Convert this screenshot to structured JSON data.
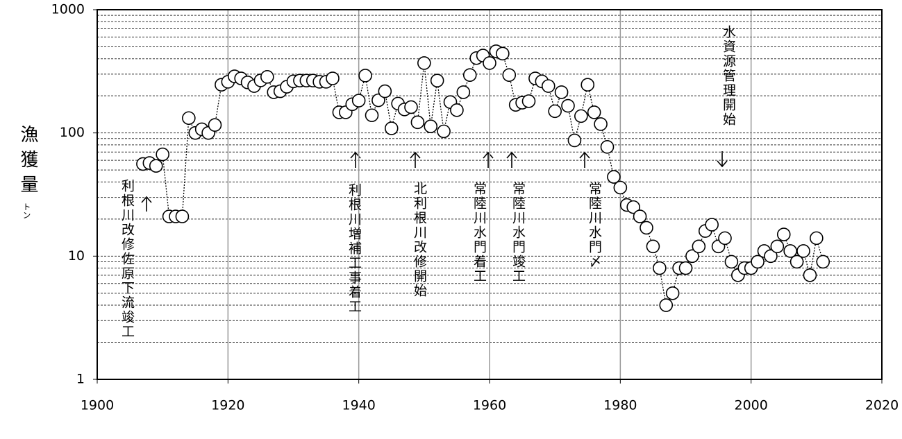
{
  "chart_data": {
    "type": "line",
    "y_label": "漁獲量",
    "y_unit": "トン",
    "x": [
      1907,
      1908,
      1909,
      1910,
      1911,
      1912,
      1913,
      1914,
      1915,
      1916,
      1917,
      1918,
      1919,
      1920,
      1921,
      1922,
      1923,
      1924,
      1925,
      1926,
      1927,
      1928,
      1929,
      1930,
      1931,
      1932,
      1933,
      1934,
      1935,
      1936,
      1937,
      1938,
      1939,
      1940,
      1941,
      1942,
      1943,
      1944,
      1945,
      1946,
      1947,
      1948,
      1949,
      1950,
      1951,
      1952,
      1953,
      1954,
      1955,
      1956,
      1957,
      1958,
      1959,
      1960,
      1961,
      1962,
      1963,
      1964,
      1965,
      1966,
      1967,
      1968,
      1969,
      1970,
      1971,
      1972,
      1973,
      1974,
      1975,
      1976,
      1977,
      1978,
      1979,
      1980,
      1981,
      1982,
      1983,
      1984,
      1985,
      1986,
      1987,
      1988,
      1989,
      1990,
      1991,
      1992,
      1993,
      1994,
      1995,
      1996,
      1997,
      1998,
      1999,
      2000,
      2001,
      2002,
      2003,
      2004,
      2005,
      2006,
      2007,
      2008,
      2009,
      2010,
      2011
    ],
    "values": [
      56,
      57,
      54,
      67,
      21,
      21,
      21,
      132,
      100,
      107,
      100,
      116,
      246,
      260,
      288,
      277,
      257,
      240,
      267,
      285,
      214,
      218,
      237,
      262,
      266,
      266,
      266,
      260,
      260,
      277,
      147,
      147,
      171,
      183,
      292,
      139,
      184,
      218,
      109,
      173,
      155,
      162,
      122,
      369,
      113,
      266,
      103,
      178,
      153,
      214,
      295,
      405,
      425,
      369,
      460,
      440,
      295,
      169,
      176,
      181,
      277,
      262,
      240,
      150,
      214,
      166,
      87,
      137,
      246,
      147,
      118,
      77,
      44,
      36,
      26,
      25,
      21,
      17,
      12,
      8,
      4,
      5,
      8,
      8,
      10,
      12,
      16,
      18,
      12,
      14,
      9,
      7,
      8,
      8,
      9,
      11,
      10,
      12,
      15,
      11,
      9,
      11,
      7,
      14,
      9
    ],
    "color": "#000000",
    "xlim": [
      1900,
      2020
    ],
    "xticks": [
      1900,
      1920,
      1940,
      1960,
      1980,
      2000,
      2020
    ],
    "ylim": [
      1,
      1000
    ],
    "yticks": [
      1,
      10,
      100,
      1000
    ],
    "log_y": true,
    "grid": true,
    "annotations": [
      "利根川改修佐原下流竣工",
      "利根川増補工事着工",
      "北利根川改修開始",
      "常陸川水門着工",
      "常陸川水門竣工",
      "常陸川水門〆",
      "水資源管理開始"
    ]
  }
}
